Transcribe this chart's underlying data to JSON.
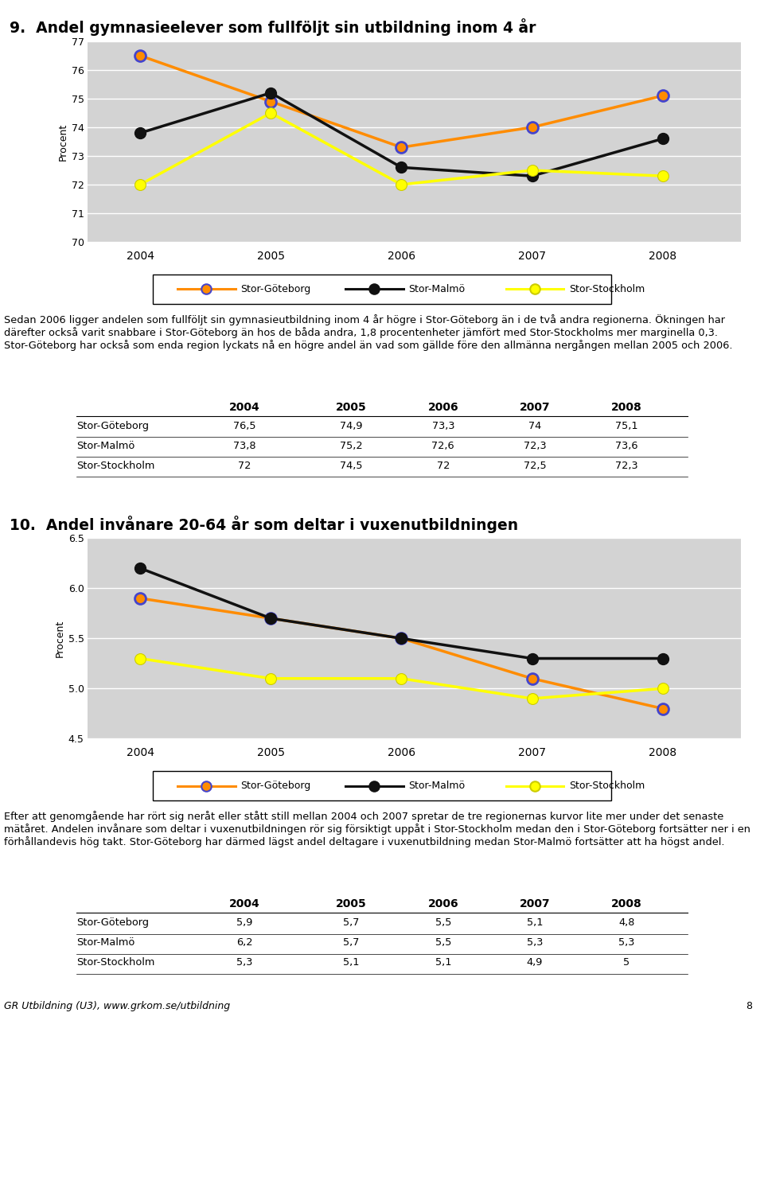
{
  "title1": "9.  Andel gymnasieelever som fullföljt sin utbildning inom 4 år",
  "title2": "10.  Andel invånare 20-64 år som deltar i vuxenutbildningen",
  "years": [
    2004,
    2005,
    2006,
    2007,
    2008
  ],
  "chart1": {
    "goteborg": [
      76.5,
      74.9,
      73.3,
      74.0,
      75.1
    ],
    "malmo": [
      73.8,
      75.2,
      72.6,
      72.3,
      73.6
    ],
    "stockholm": [
      72.0,
      74.5,
      72.0,
      72.5,
      72.3
    ],
    "ylim": [
      70,
      77
    ],
    "yticks": [
      70,
      71,
      72,
      73,
      74,
      75,
      76,
      77
    ],
    "ylabel": "Procent"
  },
  "chart2": {
    "goteborg": [
      5.9,
      5.7,
      5.5,
      5.1,
      4.8
    ],
    "malmo": [
      6.2,
      5.7,
      5.5,
      5.3,
      5.3
    ],
    "stockholm": [
      5.3,
      5.1,
      5.1,
      4.9,
      5.0
    ],
    "ylim": [
      4.5,
      6.5
    ],
    "yticks": [
      4.5,
      5.0,
      5.5,
      6.0,
      6.5
    ],
    "ylabel": "Procent"
  },
  "color_goteborg": "#FF8C00",
  "color_malmo": "#111111",
  "color_stockholm": "#FFFF00",
  "marker_edge_goteborg": "#4444CC",
  "plot_bg": "#D3D3D3",
  "text1": "Sedan 2006 ligger andelen som fullföljt sin gymnasieutbildning inom 4 år högre i Stor-Göteborg än i de två andra regionerna. Ökningen har därefter också varit snabbare i Stor-Göteborg än hos de båda andra, 1,8 procentenheter jämfört med Stor-Stockholms mer marginella 0,3. Stor-Göteborg har också som enda region lyckats nå en högre andel än vad som gällde före den allmänna nergången mellan 2005 och 2006.",
  "text2": "Efter att genomgående har rört sig neråt eller stått still mellan 2004 och 2007 spretar de tre regionernas kurvor lite mer under det senaste mätåret. Andelen invånare som deltar i vuxenutbildningen rör sig försiktigt uppåt i Stor-Stockholm medan den i Stor-Göteborg fortsätter ner i en förhållandevis hög takt. Stor-Göteborg har därmed lägst andel deltagare i vuxenutbildning medan Stor-Malmö fortsätter att ha högst andel.",
  "table1_headers": [
    "",
    "2004",
    "2005",
    "2006",
    "2007",
    "2008"
  ],
  "table1_rows": [
    [
      "Stor-Göteborg",
      "76,5",
      "74,9",
      "73,3",
      "74",
      "75,1"
    ],
    [
      "Stor-Malmö",
      "73,8",
      "75,2",
      "72,6",
      "72,3",
      "73,6"
    ],
    [
      "Stor-Stockholm",
      "72",
      "74,5",
      "72",
      "72,5",
      "72,3"
    ]
  ],
  "table2_headers": [
    "",
    "2004",
    "2005",
    "2006",
    "2007",
    "2008"
  ],
  "table2_rows": [
    [
      "Stor-Göteborg",
      "5,9",
      "5,7",
      "5,5",
      "5,1",
      "4,8"
    ],
    [
      "Stor-Malmö",
      "6,2",
      "5,7",
      "5,5",
      "5,3",
      "5,3"
    ],
    [
      "Stor-Stockholm",
      "5,3",
      "5,1",
      "5,1",
      "4,9",
      "5"
    ]
  ],
  "footer": "GR Utbildning (U3), www.grkom.se/utbildning",
  "page_number": "8"
}
